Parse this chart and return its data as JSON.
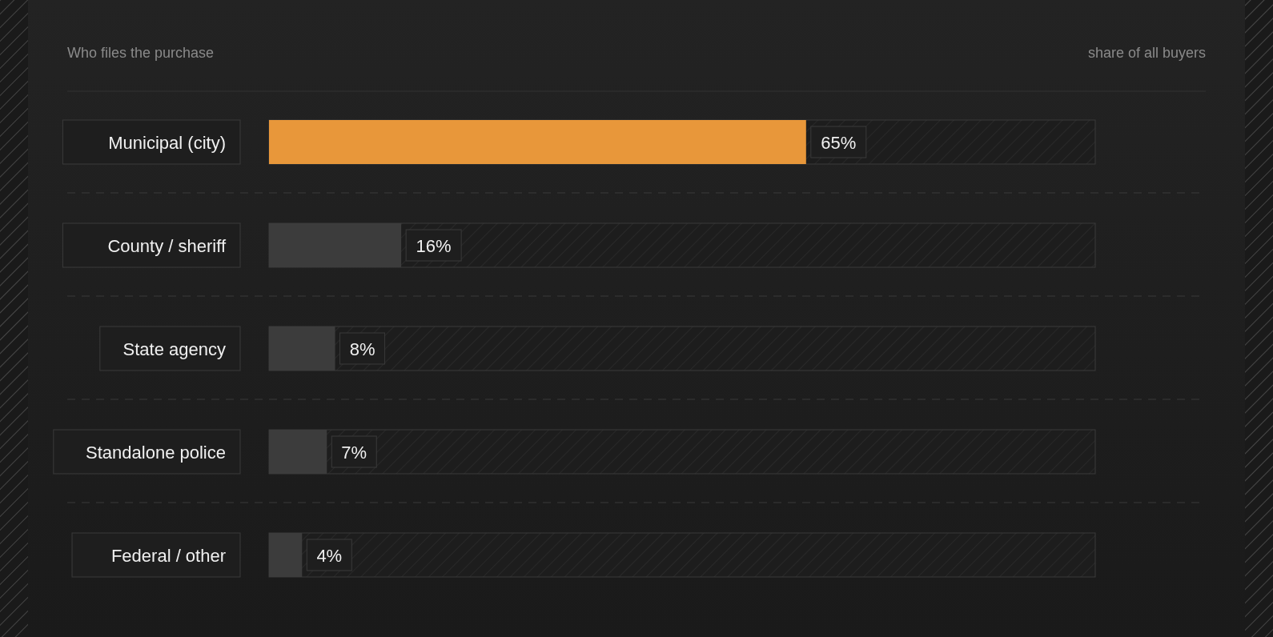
{
  "chart_data": {
    "type": "bar",
    "orientation": "horizontal",
    "title": "Who files the purchase",
    "xlabel": "share of all buyers",
    "categories": [
      "Municipal (city)",
      "County / sheriff",
      "State agency",
      "Standalone police",
      "Federal / other"
    ],
    "values": [
      65,
      16,
      8,
      7,
      4
    ],
    "colors": [
      "#e8973a",
      "#3c3c3c",
      "#3c3c3c",
      "#3c3c3c",
      "#3c3c3c"
    ],
    "value_labels": [
      "65%",
      "16%",
      "8%",
      "7%",
      "4%"
    ],
    "xlim": [
      0,
      100
    ]
  }
}
